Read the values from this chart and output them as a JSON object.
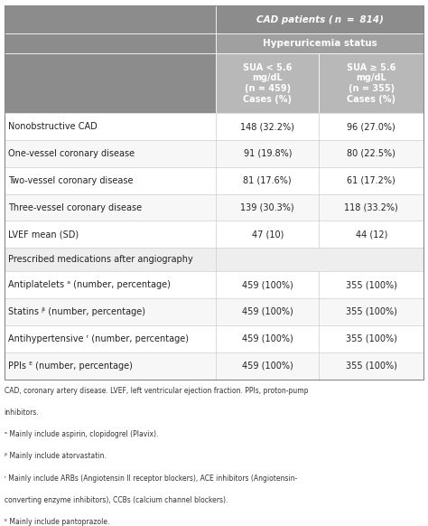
{
  "header_row1": "CAD patients ( n  =  814)",
  "header_row2": "Hyperuricemia status",
  "col1_header": "SUA < 5.6\nmg/dL\n(n = 459)\nCases (%)",
  "col2_header": "SUA ≥ 5.6\nmg/dL\n(n = 355)\nCases (%)",
  "header_bg": "#8c8c8c",
  "header_text_color": "#ffffff",
  "row_bg_alt": "#f5f5f5",
  "row_bg_white": "#ffffff",
  "section_bg": "#eeeeee",
  "border_color": "#cccccc",
  "text_color": "#222222",
  "rows": [
    {
      "label": "Nonobstructive CAD",
      "col1": "148 (32.2%)",
      "col2": "96 (27.0%)",
      "type": "data"
    },
    {
      "label": "One-vessel coronary disease",
      "col1": "91 (19.8%)",
      "col2": "80 (22.5%)",
      "type": "data"
    },
    {
      "label": "Two-vessel coronary disease",
      "col1": "81 (17.6%)",
      "col2": "61 (17.2%)",
      "type": "data"
    },
    {
      "label": "Three-vessel coronary disease",
      "col1": "139 (30.3%)",
      "col2": "118 (33.2%)",
      "type": "data"
    },
    {
      "label": "LVEF mean (SD)",
      "col1": "47 (10)",
      "col2": "44 (12)",
      "type": "data"
    },
    {
      "label": "Prescribed medications after angiography",
      "col1": "",
      "col2": "",
      "type": "section"
    },
    {
      "label": "Antiplatelets ᵃ (number, percentage)",
      "col1": "459 (100%)",
      "col2": "355 (100%)",
      "type": "data"
    },
    {
      "label": "Statins ᵝ (number, percentage)",
      "col1": "459 (100%)",
      "col2": "355 (100%)",
      "type": "data"
    },
    {
      "label": "Antihypertensive ʳ (number, percentage)",
      "col1": "459 (100%)",
      "col2": "355 (100%)",
      "type": "data"
    },
    {
      "label": "PPIs ᴱ (number, percentage)",
      "col1": "459 (100%)",
      "col2": "355 (100%)",
      "type": "data"
    }
  ],
  "footnotes": [
    "CAD, coronary artery disease. LVEF, left ventricular ejection fraction. PPIs, proton-pump",
    "inhibitors.",
    "ᵃ Mainly include aspirin, clopidogrel (Plavix).",
    "ᵝ Mainly include atorvastatin.",
    "ʳ Mainly include ARBs (Angiotensin II receptor blockers), ACE inhibitors (Angiotensin-",
    "converting enzyme inhibitors), CCBs (calcium channel blockers).",
    "ᴱ Mainly include pantoprazole."
  ]
}
